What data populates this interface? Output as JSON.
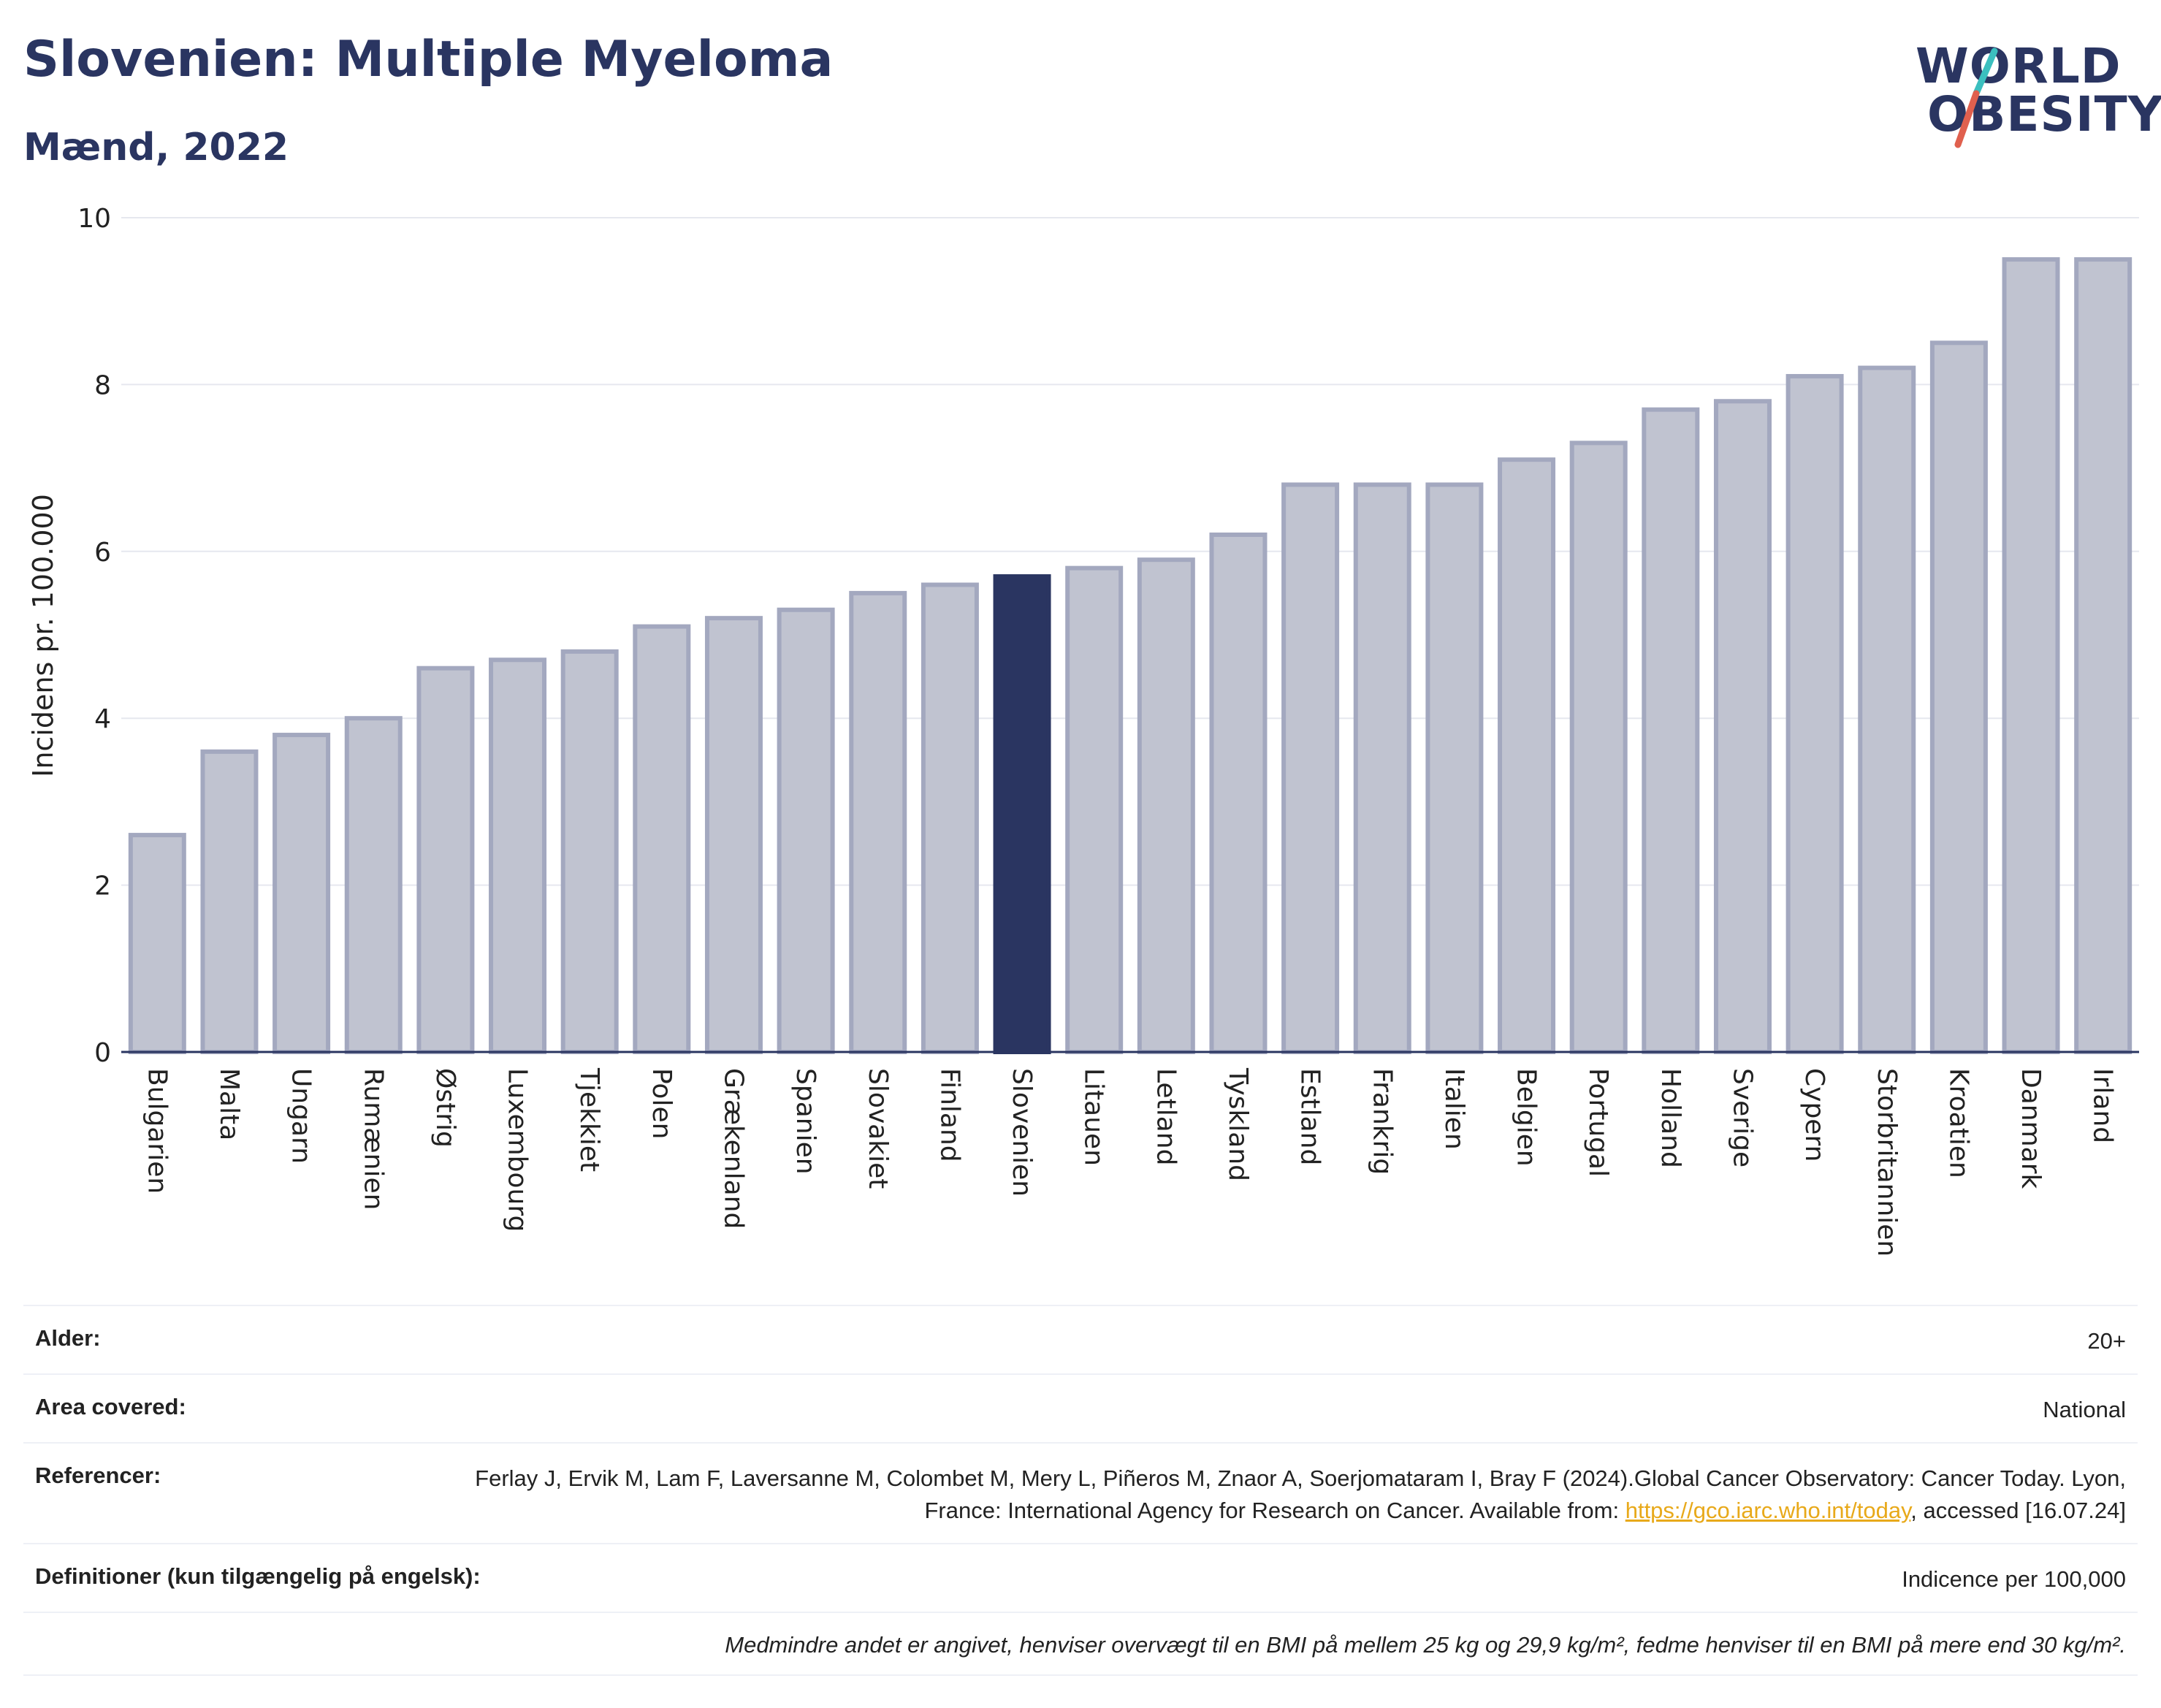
{
  "header": {
    "title": "Slovenien: Multiple Myeloma",
    "subtitle": "Mænd, 2022"
  },
  "logo": {
    "line1": "WORLD",
    "line2": "OBESITY",
    "slash_colors": [
      "#3bbfbf",
      "#e0604e"
    ]
  },
  "colors": {
    "bar": "#c0c3d0",
    "bar_stroke": "#a3a8bf",
    "highlight": "#2a3561",
    "grid": "#e6e8ef",
    "axis": "#2a3561"
  },
  "chart_data": {
    "type": "bar",
    "categories": [
      "Bulgarien",
      "Malta",
      "Ungarn",
      "Rumænien",
      "Østrig",
      "Luxembourg",
      "Tjekkiet",
      "Polen",
      "Grækenland",
      "Spanien",
      "Slovakiet",
      "Finland",
      "Slovenien",
      "Litauen",
      "Letland",
      "Tyskland",
      "Estland",
      "Frankrig",
      "Italien",
      "Belgien",
      "Portugal",
      "Holland",
      "Sverige",
      "Cypern",
      "Storbritannien",
      "Kroatien",
      "Danmark",
      "Irland"
    ],
    "values": [
      2.6,
      3.6,
      3.8,
      4.0,
      4.6,
      4.7,
      4.8,
      5.1,
      5.2,
      5.3,
      5.5,
      5.6,
      5.7,
      5.8,
      5.9,
      6.2,
      6.8,
      6.8,
      6.8,
      7.1,
      7.3,
      7.7,
      7.8,
      8.1,
      8.2,
      8.5,
      9.5,
      9.5
    ],
    "highlight": "Slovenien",
    "ylabel": "Incidens pr. 100.000",
    "xlabel": "",
    "ylim": [
      0,
      10
    ],
    "yticks": [
      0,
      2,
      4,
      6,
      8,
      10
    ],
    "grid": true
  },
  "info": {
    "rows": [
      {
        "label": "Alder:",
        "value": "20+"
      },
      {
        "label": "Area covered:",
        "value": "National"
      },
      {
        "label": "Referencer:",
        "value_pre": "Ferlay J, Ervik M, Lam F, Laversanne M, Colombet M, Mery L, Piñeros M, Znaor A, Soerjomataram I, Bray F (2024).Global Cancer Observatory: Cancer Today. Lyon, France: International Agency for Research on Cancer. Available from: ",
        "link": "https://gco.iarc.who.int/today",
        "value_post": ", accessed [16.07.24]"
      },
      {
        "label": "Definitioner (kun tilgængelig på engelsk):",
        "value": "Indicence per 100,000"
      }
    ],
    "note": "Medmindre andet er angivet, henviser overvægt til en BMI på mellem 25 kg og 29,9 kg/m², fedme henviser til en BMI på mere end 30 kg/m²."
  }
}
